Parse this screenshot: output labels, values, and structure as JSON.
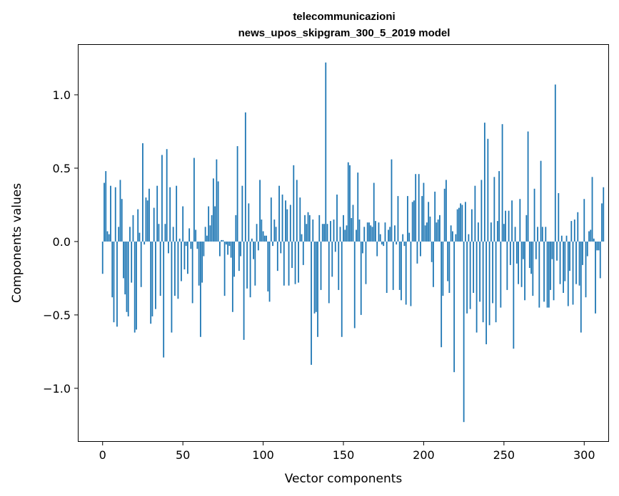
{
  "chart_data": {
    "type": "bar",
    "title": "telecommunicazioni",
    "subtitle": "news_upos_skipgram_300_5_2019 model",
    "xlabel": "Vector components",
    "ylabel": "Components values",
    "xlim": [
      -15,
      315
    ],
    "ylim": [
      -1.36,
      1.34
    ],
    "xticks": [
      0,
      50,
      100,
      150,
      200,
      250,
      300
    ],
    "yticks": [
      -1.0,
      -0.5,
      0.0,
      0.5,
      1.0
    ],
    "ytick_labels": [
      "−1.0",
      "−0.5",
      "0.0",
      "0.5",
      "1.0"
    ],
    "bar_color": "#1f77b4",
    "grid": false,
    "x_start": 0,
    "values": [
      -0.22,
      0.4,
      0.48,
      0.07,
      0.05,
      0.38,
      -0.38,
      -0.55,
      0.37,
      -0.58,
      0.1,
      0.42,
      0.29,
      -0.25,
      -0.36,
      -0.48,
      -0.51,
      0.1,
      -0.28,
      0.18,
      -0.62,
      -0.6,
      0.22,
      0.06,
      -0.31,
      0.67,
      -0.02,
      0.3,
      0.28,
      0.36,
      -0.56,
      -0.51,
      0.23,
      -0.46,
      0.38,
      0.12,
      -0.37,
      0.59,
      -0.79,
      0.12,
      0.63,
      -0.08,
      0.37,
      -0.62,
      0.1,
      -0.37,
      0.38,
      -0.39,
      0.02,
      -0.27,
      0.24,
      -0.19,
      -0.03,
      -0.22,
      0.09,
      -0.05,
      -0.42,
      0.57,
      0.08,
      -0.05,
      -0.3,
      -0.65,
      -0.28,
      -0.1,
      0.1,
      0.04,
      0.24,
      0.11,
      0.18,
      0.43,
      0.24,
      0.56,
      0.41,
      -0.1,
      0.01,
      0.01,
      -0.37,
      -0.02,
      -0.09,
      -0.03,
      -0.11,
      -0.48,
      -0.24,
      0.18,
      0.65,
      -0.2,
      -0.1,
      0.38,
      -0.67,
      0.88,
      -0.32,
      0.26,
      -0.38,
      0.02,
      -0.12,
      -0.3,
      0.12,
      -0.06,
      0.42,
      0.15,
      0.07,
      0.04,
      0.04,
      -0.34,
      -0.41,
      0.3,
      -0.03,
      0.15,
      0.1,
      -0.2,
      0.38,
      -0.08,
      0.32,
      -0.3,
      0.28,
      0.22,
      -0.3,
      0.25,
      -0.18,
      0.52,
      -0.29,
      0.42,
      -0.28,
      0.3,
      0.05,
      -0.16,
      0.18,
      0.12,
      0.2,
      0.18,
      -0.84,
      0.15,
      -0.49,
      -0.48,
      -0.65,
      0.18,
      -0.33,
      0.12,
      0.12,
      1.22,
      0.12,
      -0.42,
      0.14,
      -0.24,
      0.15,
      -0.07,
      0.32,
      -0.33,
      0.1,
      -0.65,
      0.18,
      0.08,
      0.11,
      0.54,
      0.52,
      0.16,
      0.25,
      -0.59,
      0.08,
      0.47,
      0.15,
      -0.5,
      -0.08,
      0.1,
      -0.29,
      0.13,
      0.13,
      0.11,
      0.1,
      0.4,
      0.14,
      -0.1,
      0.13,
      0.05,
      -0.02,
      -0.03,
      0.13,
      -0.35,
      0.08,
      0.1,
      0.56,
      -0.33,
      0.11,
      -0.02,
      0.31,
      -0.33,
      -0.4,
      0.05,
      -0.03,
      -0.43,
      0.31,
      0.06,
      -0.44,
      0.27,
      0.28,
      0.46,
      -0.15,
      0.46,
      -0.1,
      0.31,
      0.4,
      0.11,
      0.13,
      0.27,
      0.17,
      -0.14,
      -0.31,
      0.34,
      0.13,
      0.15,
      0.18,
      -0.72,
      -0.37,
      0.36,
      0.42,
      -0.27,
      -0.35,
      0.11,
      0.07,
      -0.89,
      0.05,
      0.22,
      0.23,
      0.26,
      0.25,
      -1.23,
      0.27,
      -0.49,
      0.05,
      -0.46,
      0.22,
      -0.35,
      0.38,
      -0.62,
      0.13,
      -0.41,
      0.42,
      -0.55,
      0.81,
      -0.7,
      0.7,
      -0.57,
      0.13,
      -0.42,
      0.44,
      -0.55,
      0.14,
      0.48,
      -0.45,
      0.8,
      0.12,
      0.21,
      -0.33,
      0.21,
      -0.16,
      0.28,
      -0.73,
      0.1,
      -0.15,
      -0.29,
      0.29,
      -0.31,
      -0.12,
      -0.4,
      0.18,
      0.75,
      -0.18,
      -0.22,
      -0.37,
      0.36,
      -0.12,
      0.1,
      -0.45,
      0.55,
      0.1,
      -0.41,
      0.1,
      -0.45,
      -0.45,
      -0.33,
      -0.12,
      -0.4,
      1.07,
      -0.13,
      0.33,
      -0.29,
      0.04,
      -0.35,
      -0.27,
      0.04,
      -0.44,
      -0.2,
      0.14,
      -0.43,
      0.15,
      -0.29,
      0.2,
      -0.3,
      -0.62,
      -0.16,
      0.29,
      -0.38,
      -0.1,
      0.07,
      0.08,
      0.44,
      0.02,
      -0.49,
      -0.06,
      -0.06,
      -0.25,
      0.26,
      0.37
    ]
  }
}
